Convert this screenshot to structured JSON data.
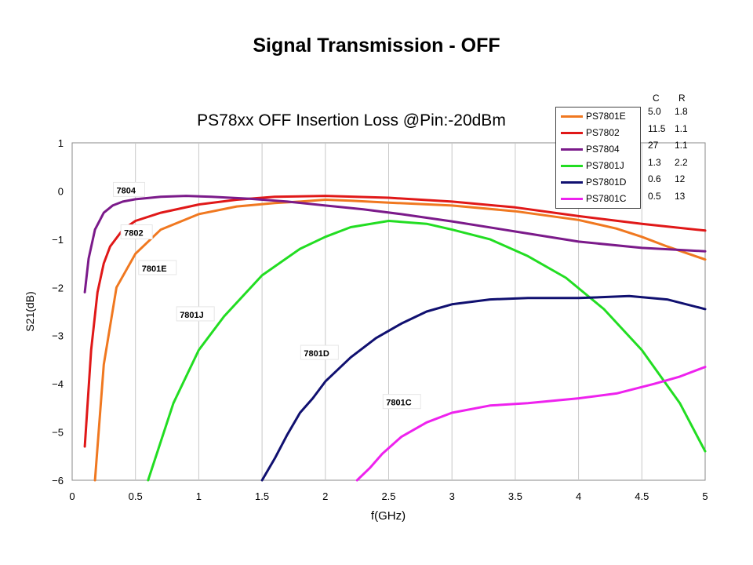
{
  "slide_title": "Signal Transmission - OFF",
  "chart_data": {
    "type": "line",
    "title": "PS78xx OFF Insertion Loss @Pin:-20dBm",
    "xlabel": "f(GHz)",
    "ylabel": "S21(dB)",
    "xlim": [
      0,
      5
    ],
    "ylim": [
      -6,
      1
    ],
    "xticks": [
      "0",
      "0.5",
      "1",
      "1.5",
      "2",
      "2.5",
      "3",
      "3.5",
      "4",
      "4.5",
      "5"
    ],
    "yticks": [
      "1",
      "0",
      "−1",
      "−2",
      "−3",
      "−4",
      "−5",
      "−6"
    ],
    "grid": "vertical",
    "legend_position": "top-right",
    "series": [
      {
        "name": "PS7801E",
        "color": "#F07820",
        "x": [
          0.18,
          0.25,
          0.35,
          0.5,
          0.7,
          1.0,
          1.3,
          1.6,
          1.8,
          2.0,
          2.2,
          2.5,
          3.0,
          3.5,
          4.0,
          4.3,
          4.5,
          4.7,
          5.0
        ],
        "y": [
          -6.0,
          -3.6,
          -2.0,
          -1.3,
          -0.8,
          -0.48,
          -0.32,
          -0.25,
          -0.22,
          -0.18,
          -0.2,
          -0.24,
          -0.3,
          -0.42,
          -0.6,
          -0.78,
          -0.95,
          -1.15,
          -1.42
        ]
      },
      {
        "name": "PS7802",
        "color": "#E01818",
        "x": [
          0.1,
          0.15,
          0.2,
          0.25,
          0.3,
          0.4,
          0.5,
          0.7,
          1.0,
          1.3,
          1.6,
          2.0,
          2.5,
          3.0,
          3.5,
          4.0,
          4.5,
          5.0
        ],
        "y": [
          -5.3,
          -3.3,
          -2.1,
          -1.5,
          -1.15,
          -0.8,
          -0.62,
          -0.45,
          -0.28,
          -0.18,
          -0.12,
          -0.1,
          -0.14,
          -0.22,
          -0.34,
          -0.52,
          -0.68,
          -0.82
        ]
      },
      {
        "name": "PS7804",
        "color": "#7B1A8A",
        "x": [
          0.1,
          0.13,
          0.18,
          0.25,
          0.32,
          0.4,
          0.5,
          0.7,
          0.9,
          1.1,
          1.4,
          1.7,
          2.0,
          2.3,
          2.6,
          3.0,
          3.5,
          4.0,
          4.5,
          5.0
        ],
        "y": [
          -2.1,
          -1.4,
          -0.8,
          -0.45,
          -0.3,
          -0.22,
          -0.17,
          -0.12,
          -0.1,
          -0.12,
          -0.16,
          -0.22,
          -0.3,
          -0.38,
          -0.48,
          -0.63,
          -0.84,
          -1.05,
          -1.18,
          -1.25
        ]
      },
      {
        "name": "PS7801J",
        "color": "#22DD22",
        "x": [
          0.6,
          0.8,
          1.0,
          1.2,
          1.5,
          1.8,
          2.0,
          2.2,
          2.5,
          2.8,
          3.0,
          3.3,
          3.6,
          3.9,
          4.2,
          4.5,
          4.8,
          5.0
        ],
        "y": [
          -6.0,
          -4.4,
          -3.3,
          -2.6,
          -1.75,
          -1.2,
          -0.95,
          -0.75,
          -0.62,
          -0.68,
          -0.8,
          -1.0,
          -1.35,
          -1.8,
          -2.45,
          -3.3,
          -4.4,
          -5.4
        ]
      },
      {
        "name": "PS7801D",
        "color": "#101070",
        "x": [
          1.5,
          1.6,
          1.7,
          1.8,
          1.9,
          2.0,
          2.2,
          2.4,
          2.6,
          2.8,
          3.0,
          3.3,
          3.6,
          4.0,
          4.4,
          4.7,
          5.0
        ],
        "y": [
          -6.0,
          -5.55,
          -5.05,
          -4.6,
          -4.3,
          -3.95,
          -3.45,
          -3.05,
          -2.75,
          -2.5,
          -2.35,
          -2.25,
          -2.22,
          -2.22,
          -2.18,
          -2.25,
          -2.45
        ]
      },
      {
        "name": "PS7801C",
        "color": "#EE22EE",
        "x": [
          2.25,
          2.35,
          2.45,
          2.6,
          2.8,
          3.0,
          3.3,
          3.6,
          4.0,
          4.3,
          4.6,
          4.8,
          5.0
        ],
        "y": [
          -6.0,
          -5.75,
          -5.45,
          -5.1,
          -4.8,
          -4.6,
          -4.45,
          -4.4,
          -4.3,
          -4.2,
          -4.0,
          -3.85,
          -3.65
        ]
      }
    ],
    "annotations": [
      {
        "text": "7804",
        "x": 0.35,
        "y": 0.0
      },
      {
        "text": "7802",
        "x": 0.41,
        "y": -0.88
      },
      {
        "text": "7801E",
        "x": 0.55,
        "y": -1.62
      },
      {
        "text": "7801J",
        "x": 0.85,
        "y": -2.58
      },
      {
        "text": "7801D",
        "x": 1.83,
        "y": -3.38
      },
      {
        "text": "7801C",
        "x": 2.48,
        "y": -4.4
      }
    ]
  },
  "cr_table": {
    "headers": {
      "c": "C",
      "r": "R"
    },
    "rows": [
      {
        "c": "5.0",
        "r": "1.8"
      },
      {
        "c": "11.5",
        "r": "1.1"
      },
      {
        "c": "27",
        "r": "1.1"
      },
      {
        "c": "1.3",
        "r": "2.2"
      },
      {
        "c": "0.6",
        "r": "12"
      },
      {
        "c": "0.5",
        "r": "13"
      }
    ]
  }
}
